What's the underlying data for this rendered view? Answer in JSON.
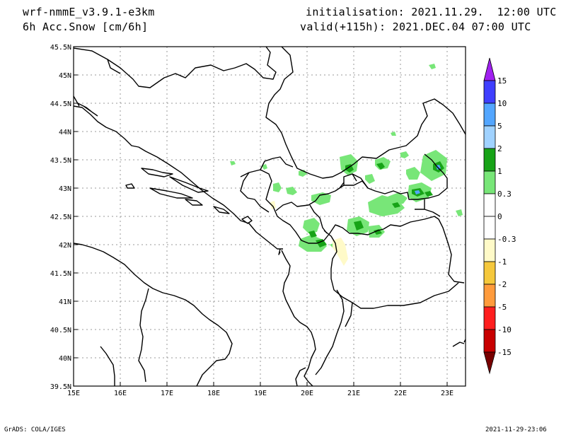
{
  "header": {
    "model": "wrf-nmmE_v3.9.1-e3km",
    "field": "6h Acc.Snow [cm/6h]",
    "init": "initialisation: 2021.11.29.  12:00 UTC",
    "valid": "valid(+115h): 2021.DEC.04 07:00 UTC"
  },
  "axes": {
    "lon_labels": [
      "15E",
      "16E",
      "17E",
      "18E",
      "19E",
      "20E",
      "21E",
      "22E",
      "23E"
    ],
    "lat_labels": [
      "45.5N",
      "45N",
      "44.5N",
      "44N",
      "43.5N",
      "43N",
      "42.5N",
      "42N",
      "41.5N",
      "41N",
      "40.5N",
      "40N",
      "39.5N"
    ]
  },
  "colorbar": {
    "labels": [
      "15",
      "10",
      "5",
      "2",
      "1",
      "0.3",
      "0",
      "-0.3",
      "-1",
      "-2",
      "-5",
      "-10",
      "-15"
    ],
    "colors": [
      "#a020f0",
      "#3f3fff",
      "#53a6ff",
      "#a0d2ff",
      "#17a317",
      "#78e678",
      "#ffffff",
      "#ffffff",
      "#fffac8",
      "#f5c83c",
      "#ff9b3c",
      "#ff1e1e",
      "#c80000",
      "#a00000",
      "#780000"
    ]
  },
  "footer": {
    "credit": "GrADS: COLA/IGES",
    "timestamp": "2021-11-29-23:06"
  }
}
